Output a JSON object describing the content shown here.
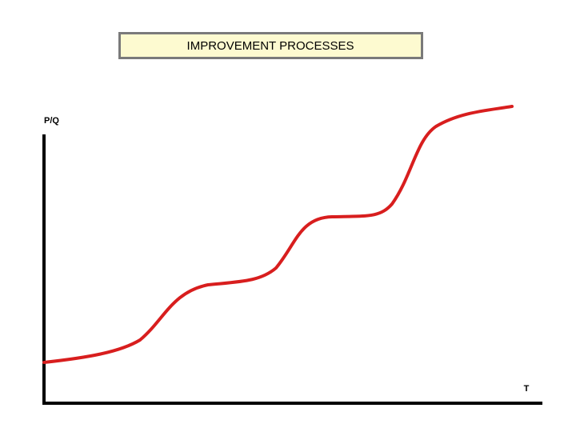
{
  "title": "IMPROVEMENT PROCESSES",
  "y_axis": {
    "label": "P/Q"
  },
  "x_axis": {
    "label": "T"
  }
}
